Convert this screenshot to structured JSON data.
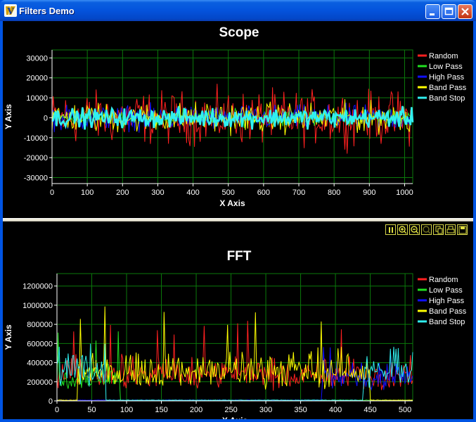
{
  "window": {
    "title": "Filters Demo",
    "app_icon": "scilab-icon",
    "controls": [
      "minimize-icon",
      "maximize-icon",
      "close-icon"
    ]
  },
  "toolbar": {
    "tools": [
      "pause-icon",
      "zoom-in-icon",
      "zoom-out-icon",
      "zoom-reset-icon",
      "copy-icon",
      "print-icon",
      "save-icon"
    ]
  },
  "colors": {
    "background": "#000000",
    "grid": "#0b7a0b",
    "Random": "#ff2020",
    "Low Pass": "#20e020",
    "High Pass": "#1010ff",
    "Band Pass": "#ffff00",
    "Band Stop": "#30f0f0"
  },
  "chart_data": [
    {
      "type": "line",
      "title": "Scope",
      "xlabel": "X Axis",
      "ylabel": "Y Axis",
      "xlim": [
        0,
        1023
      ],
      "ylim": [
        -33000,
        34000
      ],
      "xticks": [
        "0",
        "100",
        "200",
        "300",
        "400",
        "500",
        "600",
        "700",
        "800",
        "900",
        "1000"
      ],
      "xtick_values": [
        0,
        100,
        200,
        300,
        400,
        500,
        600,
        700,
        800,
        900,
        1000
      ],
      "yticks": [
        "30000",
        "20000",
        "10000",
        "0",
        "-10000",
        "-20000",
        "-30000"
      ],
      "ytick_values": [
        30000,
        20000,
        10000,
        0,
        -10000,
        -20000,
        -30000
      ],
      "grid": true,
      "legend_position": "right",
      "series": [
        {
          "name": "Random",
          "amplitude": 19000,
          "center": 0
        },
        {
          "name": "Low Pass",
          "amplitude": 6000,
          "center": 0
        },
        {
          "name": "High Pass",
          "amplitude": 9000,
          "center": 0
        },
        {
          "name": "Band Pass",
          "amplitude": 11000,
          "center": 0
        },
        {
          "name": "Band Stop",
          "amplitude": 7000,
          "center": 0
        }
      ]
    },
    {
      "type": "line",
      "title": "FFT",
      "xlabel": "X Axis",
      "ylabel": "Y Axis",
      "xlim": [
        0,
        511
      ],
      "ylim": [
        0,
        1330000
      ],
      "xticks": [
        "0",
        "50",
        "100",
        "150",
        "200",
        "250",
        "300",
        "350",
        "400",
        "450",
        "500"
      ],
      "xtick_values": [
        0,
        50,
        100,
        150,
        200,
        250,
        300,
        350,
        400,
        450,
        500
      ],
      "yticks": [
        "1200000",
        "1000000",
        "800000",
        "600000",
        "400000",
        "200000",
        "0"
      ],
      "ytick_values": [
        1200000,
        1000000,
        800000,
        600000,
        400000,
        200000,
        0
      ],
      "grid": true,
      "legend_position": "right",
      "series": [
        {
          "name": "Random",
          "typical": 400000,
          "peak": 850000,
          "band": [
            0,
            511
          ]
        },
        {
          "name": "Low Pass",
          "typical": 350000,
          "peak": 760000,
          "band": [
            0,
            90
          ]
        },
        {
          "name": "High Pass",
          "typical": 350000,
          "peak": 650000,
          "band": [
            380,
            511
          ]
        },
        {
          "name": "Band Pass",
          "typical": 450000,
          "peak": 990000,
          "band": [
            30,
            450
          ]
        },
        {
          "name": "Band Stop",
          "typical": 450000,
          "peak": 680000,
          "band": [
            0,
            511
          ],
          "stop": [
            70,
            440
          ]
        }
      ]
    }
  ]
}
